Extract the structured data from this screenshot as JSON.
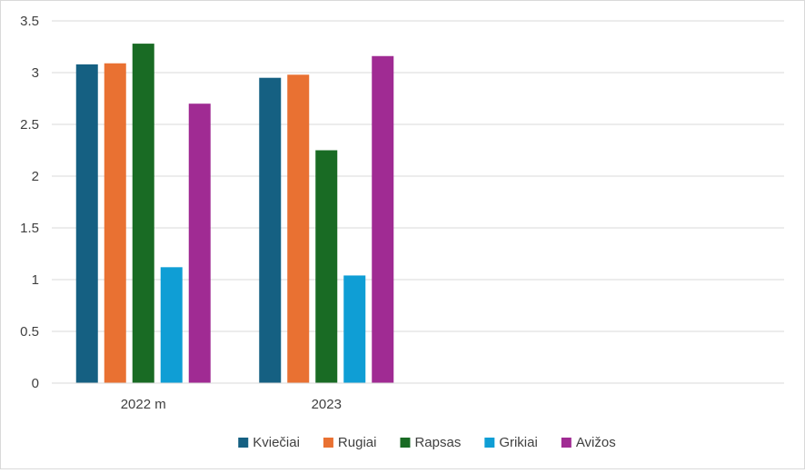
{
  "chart_data": {
    "type": "bar",
    "title": "",
    "xlabel": "",
    "ylabel": "",
    "categories": [
      "2022 m",
      "2023"
    ],
    "category_slots": 4,
    "series": [
      {
        "name": "Kviečiai",
        "color": "#156082",
        "values": [
          3.08,
          2.95
        ]
      },
      {
        "name": "Rugiai",
        "color": "#E97132",
        "values": [
          3.09,
          2.98
        ]
      },
      {
        "name": "Rapsas",
        "color": "#196B24",
        "values": [
          3.28,
          2.25
        ]
      },
      {
        "name": "Grikiai",
        "color": "#0F9ED5",
        "values": [
          1.12,
          1.04
        ]
      },
      {
        "name": "Avižos",
        "color": "#A02B93",
        "values": [
          2.7,
          3.16
        ]
      }
    ],
    "ylim": [
      0,
      3.5
    ],
    "yticks": [
      "0",
      "0.5",
      "1",
      "1.5",
      "2",
      "2.5",
      "3",
      "3.5"
    ],
    "grid": true,
    "legend_position": "bottom"
  }
}
